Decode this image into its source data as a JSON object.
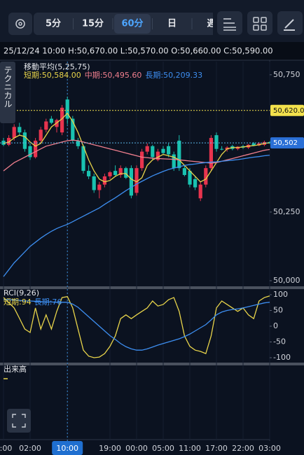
{
  "toolbar": {
    "tabs": [
      "5分",
      "15分",
      "60分",
      "日",
      "週"
    ],
    "active": "60分"
  },
  "info": "25/12/24 10:00 H:50,670.00 L:50,570.00 O:50,660.00 C:50,590.00",
  "side_tab": "テクニカル",
  "volume_title": "出来高",
  "crosshair": "10:00",
  "chart_data": [
    {
      "type": "candlestick",
      "title": "移動平均(5,25,75)",
      "categories": [
        "0:00",
        null,
        null,
        null,
        null,
        "02:00",
        null,
        null,
        null,
        null,
        null,
        null,
        "10:00",
        null,
        null,
        null,
        null,
        null,
        null,
        null,
        "19:00",
        null,
        null,
        null,
        null,
        "00:00",
        null,
        null,
        null,
        null,
        "05:00",
        null,
        null,
        null,
        null,
        "11:00",
        null,
        null,
        null,
        null,
        "17:00",
        null,
        null,
        null,
        null,
        "22:00",
        null,
        null,
        null,
        null,
        "03:00"
      ],
      "open": [
        50510,
        50495,
        50520,
        50560,
        50540,
        50490,
        50450,
        50510,
        50550,
        50590,
        50560,
        50540,
        50660,
        50590,
        50510,
        50490,
        50400,
        50380,
        50330,
        50350,
        50380,
        50400,
        50385,
        50410,
        50410,
        50320,
        50410,
        50470,
        50490,
        50440,
        50480,
        50490,
        50460,
        50510,
        50410,
        50400,
        50370,
        50300,
        50350,
        50410,
        50530,
        50480,
        50478,
        50490,
        50480,
        50490,
        50485,
        50500,
        50493,
        50495,
        50505
      ],
      "high": [
        50520,
        50530,
        50570,
        50575,
        50550,
        50500,
        50520,
        50560,
        50590,
        50600,
        50590,
        50640,
        50670,
        50600,
        50520,
        50495,
        50420,
        50390,
        50360,
        50390,
        50400,
        50420,
        50420,
        50415,
        50420,
        50420,
        50480,
        50500,
        50495,
        50480,
        50490,
        50500,
        50470,
        50530,
        50420,
        50410,
        50380,
        50360,
        50420,
        50530,
        50540,
        50490,
        50490,
        50495,
        50490,
        50495,
        50498,
        50505,
        50505,
        50510,
        50508
      ],
      "low": [
        50490,
        50490,
        50510,
        50530,
        50470,
        50440,
        50445,
        50500,
        50540,
        50570,
        50540,
        50530,
        50570,
        50500,
        50480,
        50390,
        50370,
        50320,
        50300,
        50340,
        50370,
        50380,
        50375,
        50370,
        50300,
        50310,
        50400,
        50460,
        50440,
        50435,
        50460,
        50450,
        50400,
        50400,
        50380,
        50340,
        50330,
        50290,
        50340,
        50400,
        50470,
        50475,
        50470,
        50475,
        50475,
        50480,
        50480,
        50490,
        50490,
        50490,
        50498
      ],
      "close": [
        50495,
        50520,
        50560,
        50540,
        50480,
        50450,
        50510,
        50550,
        50580,
        50575,
        50585,
        50630,
        50590,
        50510,
        50490,
        50400,
        50380,
        50330,
        50350,
        50380,
        50395,
        50385,
        50410,
        50375,
        50310,
        50410,
        50470,
        50490,
        50450,
        50470,
        50465,
        50460,
        50410,
        50410,
        50385,
        50350,
        50340,
        50350,
        50410,
        50520,
        50480,
        50478,
        50485,
        50480,
        50488,
        50485,
        50495,
        50493,
        50500,
        50505,
        50502
      ],
      "up_color": "#e8344e",
      "down_color": "#19c2b0",
      "series": [
        {
          "name": "短期:50,584.00",
          "color": "#e8d44a",
          "values": [
            50500,
            50505,
            50520,
            50530,
            50525,
            50505,
            50490,
            50500,
            50530,
            50560,
            50575,
            50590,
            50610,
            50580,
            50540,
            50490,
            50440,
            50400,
            50370,
            50360,
            50365,
            50380,
            50390,
            50390,
            50370,
            50360,
            50375,
            50420,
            50440,
            50450,
            50460,
            50455,
            50450,
            50440,
            50420,
            50400,
            50380,
            50360,
            50370,
            50400,
            50430,
            50460,
            50480,
            50485,
            50485,
            50487,
            50490,
            50492,
            50495,
            50500,
            50502
          ]
        },
        {
          "name": "中期:50,495.60",
          "color": "#f07f8e",
          "values": [
            50400,
            50415,
            50430,
            50440,
            50450,
            50460,
            50470,
            50480,
            50490,
            50495,
            50500,
            50505,
            50510,
            50512,
            50510,
            50505,
            50500,
            50495,
            50490,
            50485,
            50480,
            50475,
            50470,
            50465,
            50460,
            50455,
            50450,
            50448,
            50446,
            50445,
            50444,
            50443,
            50442,
            50440,
            50438,
            50436,
            50434,
            50432,
            50430,
            50428,
            50430,
            50435,
            50440,
            50445,
            50450,
            50455,
            50460,
            50465,
            50470,
            50475,
            50478
          ]
        },
        {
          "name": "長期:50,209.33",
          "color": "#3d8ef0",
          "values": [
            50015,
            50040,
            50065,
            50085,
            50105,
            50125,
            50140,
            50155,
            50168,
            50180,
            50190,
            50198,
            50205,
            50215,
            50225,
            50235,
            50245,
            50255,
            50265,
            50278,
            50290,
            50302,
            50315,
            50328,
            50340,
            50352,
            50362,
            50372,
            50382,
            50390,
            50398,
            50405,
            50410,
            50415,
            50420,
            50423,
            50425,
            50428,
            50430,
            50432,
            50433,
            50435,
            50437,
            50439,
            50441,
            50444,
            50447,
            50450,
            50452,
            50455,
            50457
          ]
        }
      ],
      "ylim": [
        49977,
        50798
      ],
      "yticks": [
        {
          "value": 50750,
          "label": "50,750"
        },
        {
          "value": 50250,
          "label": "50,250"
        },
        {
          "value": 50000,
          "label": "50,000"
        }
      ],
      "lines": [
        {
          "value": 50620,
          "label": "50,620.00",
          "color": "#f3e14c"
        },
        {
          "value": 50502,
          "label": "50,502",
          "color": "#2a6fd6"
        }
      ]
    },
    {
      "type": "line",
      "title": "RCI(9,26)",
      "series": [
        {
          "name": "短期:94",
          "color": "#e8d44a",
          "values": [
            91,
            75,
            58,
            25,
            -9,
            -20,
            58,
            -9,
            36,
            -9,
            47,
            91,
            94,
            58,
            -9,
            -76,
            -95,
            -100,
            -98,
            -87,
            -64,
            -31,
            24,
            36,
            24,
            36,
            47,
            58,
            80,
            64,
            69,
            84,
            91,
            47,
            -31,
            -64,
            -76,
            -80,
            -87,
            -31,
            58,
            80,
            69,
            58,
            47,
            58,
            36,
            24,
            80,
            91,
            96
          ]
        },
        {
          "name": "長期:76",
          "color": "#3d8ef0",
          "values": [
            85,
            84,
            83,
            82,
            80,
            80,
            79,
            78,
            77,
            77,
            76,
            76,
            76,
            70,
            60,
            45,
            30,
            15,
            0,
            -15,
            -30,
            -42,
            -55,
            -65,
            -72,
            -76,
            -76,
            -72,
            -66,
            -60,
            -55,
            -50,
            -45,
            -40,
            -33,
            -25,
            -15,
            -5,
            5,
            20,
            36,
            45,
            50,
            53,
            55,
            58,
            62,
            66,
            70,
            74,
            76
          ]
        }
      ],
      "ylim": [
        -120,
        120
      ],
      "yticks": [
        100,
        50,
        0,
        -50,
        -100
      ]
    }
  ]
}
